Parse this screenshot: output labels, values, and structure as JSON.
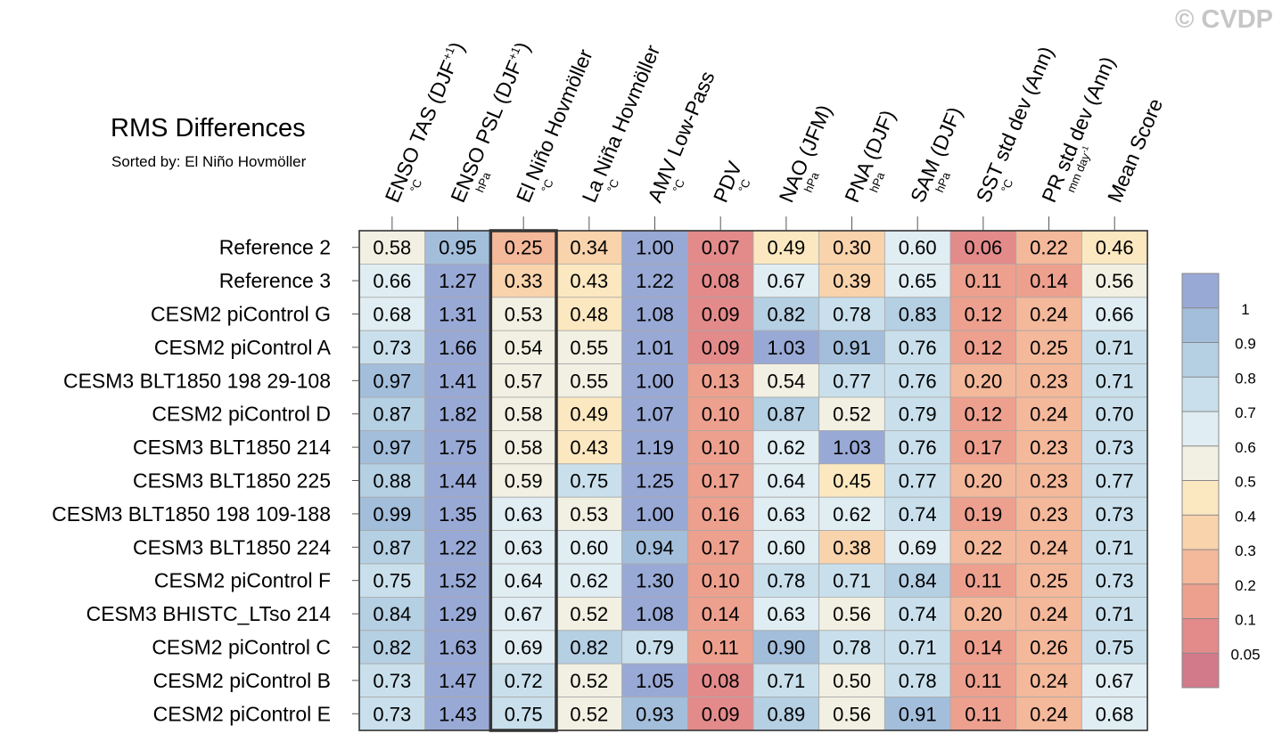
{
  "watermark": "© CVDP",
  "chart_data": {
    "type": "heatmap",
    "title": "RMS Differences",
    "subtitle": "Sorted by: El Niño Hovmöller",
    "highlighted_column": 2,
    "columns": [
      {
        "label": "ENSO TAS (DJF",
        "sup": "+1",
        "suffix": ")",
        "unit": "°C"
      },
      {
        "label": "ENSO PSL (DJF",
        "sup": "+1",
        "suffix": ")",
        "unit": "hPa"
      },
      {
        "label": "El Niño Hovmöller",
        "unit": "°C"
      },
      {
        "label": "La Niña Hovmöller",
        "unit": "°C"
      },
      {
        "label": "AMV Low-Pass",
        "unit": "°C"
      },
      {
        "label": "PDV",
        "unit": "°C"
      },
      {
        "label": "NAO (JFM)",
        "unit": "hPa"
      },
      {
        "label": "PNA (DJF)",
        "unit": "hPa"
      },
      {
        "label": "SAM (DJF)",
        "unit": "hPa"
      },
      {
        "label": "SST std dev (Ann)",
        "unit": "°C"
      },
      {
        "label": "PR std dev (Ann)",
        "unit": "mm day",
        "unit_sup": "-1"
      },
      {
        "label": "Mean Score",
        "unit": ""
      }
    ],
    "rows": [
      {
        "name": "Reference 2",
        "values": [
          0.58,
          0.95,
          0.25,
          0.34,
          1.0,
          0.07,
          0.49,
          0.3,
          0.6,
          0.06,
          0.22,
          0.46
        ]
      },
      {
        "name": "Reference 3",
        "values": [
          0.66,
          1.27,
          0.33,
          0.43,
          1.22,
          0.08,
          0.67,
          0.39,
          0.65,
          0.11,
          0.14,
          0.56
        ]
      },
      {
        "name": "CESM2 piControl G",
        "values": [
          0.68,
          1.31,
          0.53,
          0.48,
          1.08,
          0.09,
          0.82,
          0.78,
          0.83,
          0.12,
          0.24,
          0.66
        ]
      },
      {
        "name": "CESM2 piControl A",
        "values": [
          0.73,
          1.66,
          0.54,
          0.55,
          1.01,
          0.09,
          1.03,
          0.91,
          0.76,
          0.12,
          0.25,
          0.71
        ]
      },
      {
        "name": "CESM3 BLT1850 198 29-108",
        "values": [
          0.97,
          1.41,
          0.57,
          0.55,
          1.0,
          0.13,
          0.54,
          0.77,
          0.76,
          0.2,
          0.23,
          0.71
        ]
      },
      {
        "name": "CESM2 piControl D",
        "values": [
          0.87,
          1.82,
          0.58,
          0.49,
          1.07,
          0.1,
          0.87,
          0.52,
          0.79,
          0.12,
          0.24,
          0.7
        ]
      },
      {
        "name": "CESM3 BLT1850 214",
        "values": [
          0.97,
          1.75,
          0.58,
          0.43,
          1.19,
          0.1,
          0.62,
          1.03,
          0.76,
          0.17,
          0.23,
          0.73
        ]
      },
      {
        "name": "CESM3 BLT1850 225",
        "values": [
          0.88,
          1.44,
          0.59,
          0.75,
          1.25,
          0.17,
          0.64,
          0.45,
          0.77,
          0.2,
          0.23,
          0.77
        ]
      },
      {
        "name": "CESM3 BLT1850 198 109-188",
        "values": [
          0.99,
          1.35,
          0.63,
          0.53,
          1.0,
          0.16,
          0.63,
          0.62,
          0.74,
          0.19,
          0.23,
          0.73
        ]
      },
      {
        "name": "CESM3 BLT1850 224",
        "values": [
          0.87,
          1.22,
          0.63,
          0.6,
          0.94,
          0.17,
          0.6,
          0.38,
          0.69,
          0.22,
          0.24,
          0.71
        ]
      },
      {
        "name": "CESM2 piControl F",
        "values": [
          0.75,
          1.52,
          0.64,
          0.62,
          1.3,
          0.1,
          0.78,
          0.71,
          0.84,
          0.11,
          0.25,
          0.73
        ]
      },
      {
        "name": "CESM3 BHISTC_LTso 214",
        "values": [
          0.84,
          1.29,
          0.67,
          0.52,
          1.08,
          0.14,
          0.63,
          0.56,
          0.74,
          0.2,
          0.24,
          0.71
        ]
      },
      {
        "name": "CESM2 piControl C",
        "values": [
          0.82,
          1.63,
          0.69,
          0.82,
          0.79,
          0.11,
          0.9,
          0.78,
          0.71,
          0.14,
          0.26,
          0.75
        ]
      },
      {
        "name": "CESM2 piControl B",
        "values": [
          0.73,
          1.47,
          0.72,
          0.52,
          1.05,
          0.08,
          0.71,
          0.5,
          0.78,
          0.11,
          0.24,
          0.67
        ]
      },
      {
        "name": "CESM2 piControl E",
        "values": [
          0.73,
          1.43,
          0.75,
          0.52,
          0.93,
          0.09,
          0.89,
          0.56,
          0.91,
          0.11,
          0.24,
          0.68
        ]
      }
    ],
    "colorbar": {
      "labels": [
        "1",
        "0.9",
        "0.8",
        "0.7",
        "0.6",
        "0.5",
        "0.4",
        "0.3",
        "0.2",
        "0.1",
        "0.05"
      ],
      "thresholds": [
        0.05,
        0.1,
        0.2,
        0.3,
        0.4,
        0.5,
        0.6,
        0.7,
        0.8,
        0.9,
        1.0
      ],
      "colors": [
        "#d27a8a",
        "#e38a8a",
        "#eda08e",
        "#f4b89a",
        "#f9d3ac",
        "#fce8c0",
        "#f2f0e2",
        "#e0edf2",
        "#c9e0ec",
        "#b5cfe3",
        "#a3bedb",
        "#99a9d5"
      ]
    }
  }
}
